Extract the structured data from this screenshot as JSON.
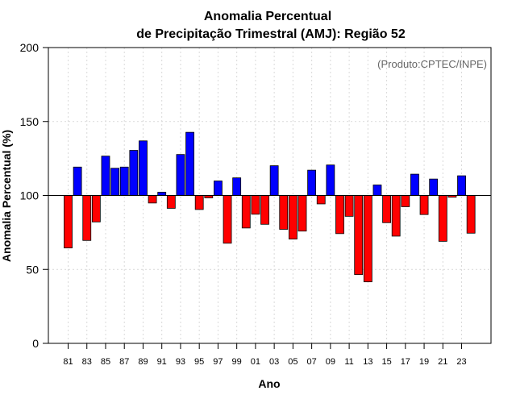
{
  "chart_data": {
    "type": "bar",
    "title_line1": "Anomalia Percentual",
    "title_line2": "de Precipitação Trimestral (AMJ): Região 52",
    "xlabel": "Ano",
    "ylabel": "Anomalia Percentual (%)",
    "credit": "(Produto:CPTEC/INPE)",
    "baseline": 100,
    "ylim": [
      0,
      200
    ],
    "yticks": [
      0,
      50,
      100,
      150,
      200
    ],
    "x_tick_labels": [
      "81",
      "83",
      "85",
      "87",
      "89",
      "91",
      "93",
      "95",
      "97",
      "99",
      "01",
      "03",
      "05",
      "07",
      "09",
      "11",
      "13",
      "15",
      "17",
      "19",
      "21",
      "23"
    ],
    "grid": true,
    "above_color": "#0000ff",
    "below_color": "#ff0000",
    "categories": [
      "1981",
      "1982",
      "1983",
      "1984",
      "1985",
      "1986",
      "1987",
      "1988",
      "1989",
      "1990",
      "1991",
      "1992",
      "1993",
      "1994",
      "1995",
      "1996",
      "1997",
      "1998",
      "1999",
      "2000",
      "2001",
      "2002",
      "2003",
      "2004",
      "2005",
      "2006",
      "2007",
      "2008",
      "2009",
      "2010",
      "2011",
      "2012",
      "2013",
      "2014",
      "2015",
      "2016",
      "2017",
      "2018",
      "2019",
      "2020",
      "2021",
      "2022",
      "2023",
      "2024"
    ],
    "values": [
      64.5,
      119.2,
      69.6,
      82.1,
      126.6,
      118.4,
      119.2,
      130.5,
      136.9,
      94.9,
      102.2,
      91.3,
      127.7,
      142.7,
      90.5,
      98.4,
      109.8,
      67.7,
      111.9,
      78.0,
      87.3,
      80.5,
      120.1,
      77.1,
      70.5,
      75.9,
      117.1,
      94.3,
      120.6,
      74.2,
      85.9,
      46.5,
      41.6,
      107.1,
      81.6,
      72.5,
      92.4,
      114.4,
      87.1,
      111.1,
      69.0,
      98.8,
      113.3,
      74.5
    ]
  }
}
